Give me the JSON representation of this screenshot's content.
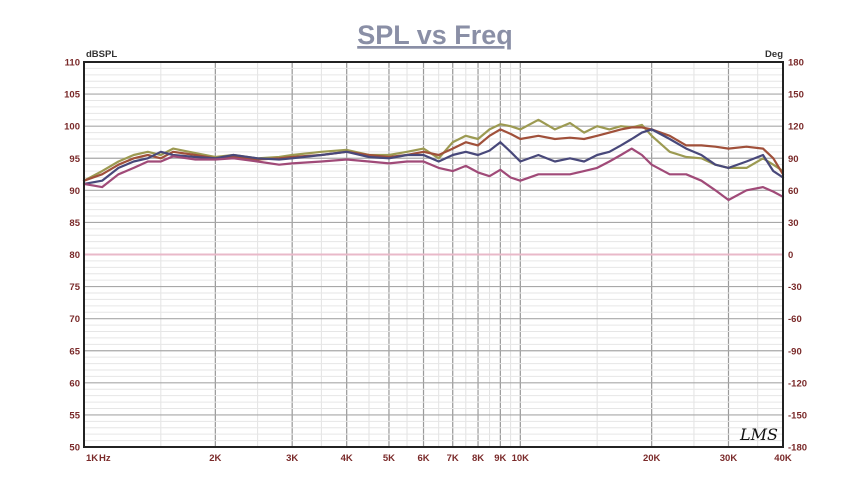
{
  "chart_data": {
    "type": "line",
    "title": "SPL vs Freq",
    "xscale": "log",
    "xlim": [
      1000,
      40000
    ],
    "ylim": [
      50,
      110
    ],
    "y2lim": [
      -180,
      180
    ],
    "ylabel": "dBSPL",
    "y2label": "Deg",
    "x_ticks": [
      {
        "value": 1000,
        "label": "1K"
      },
      {
        "value": 2000,
        "label": "2K"
      },
      {
        "value": 3000,
        "label": "3K"
      },
      {
        "value": 4000,
        "label": "4K"
      },
      {
        "value": 5000,
        "label": "5K"
      },
      {
        "value": 6000,
        "label": "6K"
      },
      {
        "value": 7000,
        "label": "7K"
      },
      {
        "value": 8000,
        "label": "8K"
      },
      {
        "value": 9000,
        "label": "9K"
      },
      {
        "value": 10000,
        "label": "10K"
      },
      {
        "value": 20000,
        "label": "20K"
      },
      {
        "value": 30000,
        "label": "30K"
      },
      {
        "value": 40000,
        "label": "40K"
      }
    ],
    "x_unit_label": "Hz",
    "y_ticks": [
      110,
      105,
      100,
      95,
      90,
      85,
      80,
      75,
      70,
      65,
      60,
      55,
      50
    ],
    "y2_ticks": [
      180,
      150,
      120,
      90,
      60,
      30,
      0,
      -30,
      -60,
      -90,
      -120,
      -150,
      -180
    ],
    "reference_line_y": 80,
    "grid": true,
    "logo_text": "LMS",
    "series": [
      {
        "color": "#9c9a52",
        "points": [
          [
            1000,
            91.5
          ],
          [
            1100,
            93
          ],
          [
            1200,
            94.5
          ],
          [
            1300,
            95.5
          ],
          [
            1400,
            96
          ],
          [
            1500,
            95.5
          ],
          [
            1600,
            96.5
          ],
          [
            1800,
            95.8
          ],
          [
            2000,
            95.2
          ],
          [
            2200,
            95.5
          ],
          [
            2500,
            95
          ],
          [
            2800,
            95.2
          ],
          [
            3000,
            95.5
          ],
          [
            3500,
            96
          ],
          [
            4000,
            96.3
          ],
          [
            4500,
            95.5
          ],
          [
            5000,
            95.5
          ],
          [
            5500,
            96
          ],
          [
            6000,
            96.5
          ],
          [
            6500,
            95
          ],
          [
            7000,
            97.5
          ],
          [
            7500,
            98.5
          ],
          [
            8000,
            98
          ],
          [
            8500,
            99.5
          ],
          [
            9000,
            100.3
          ],
          [
            9500,
            100
          ],
          [
            10000,
            99.5
          ],
          [
            11000,
            101
          ],
          [
            12000,
            99.5
          ],
          [
            13000,
            100.5
          ],
          [
            14000,
            99
          ],
          [
            15000,
            100
          ],
          [
            16000,
            99.5
          ],
          [
            17000,
            100
          ],
          [
            18000,
            99.8
          ],
          [
            19000,
            100.2
          ],
          [
            20000,
            98.5
          ],
          [
            22000,
            96
          ],
          [
            24000,
            95.2
          ],
          [
            26000,
            95
          ],
          [
            28000,
            94
          ],
          [
            30000,
            93.5
          ],
          [
            33000,
            93.5
          ],
          [
            36000,
            95
          ],
          [
            38000,
            94
          ],
          [
            40000,
            93
          ]
        ]
      },
      {
        "color": "#a0503a",
        "points": [
          [
            1000,
            91.5
          ],
          [
            1100,
            92.5
          ],
          [
            1200,
            94
          ],
          [
            1300,
            95
          ],
          [
            1400,
            95.5
          ],
          [
            1500,
            95
          ],
          [
            1600,
            96
          ],
          [
            1800,
            95.5
          ],
          [
            2000,
            95
          ],
          [
            2200,
            95.2
          ],
          [
            2500,
            94.8
          ],
          [
            2800,
            95
          ],
          [
            3000,
            95.2
          ],
          [
            3500,
            95.5
          ],
          [
            4000,
            96
          ],
          [
            4500,
            95.5
          ],
          [
            5000,
            95.2
          ],
          [
            5500,
            95.5
          ],
          [
            6000,
            96
          ],
          [
            6500,
            95.5
          ],
          [
            7000,
            96.5
          ],
          [
            7500,
            97.5
          ],
          [
            8000,
            97
          ],
          [
            8500,
            98.5
          ],
          [
            9000,
            99.5
          ],
          [
            9500,
            98.8
          ],
          [
            10000,
            98
          ],
          [
            11000,
            98.5
          ],
          [
            12000,
            98
          ],
          [
            13000,
            98.2
          ],
          [
            14000,
            98
          ],
          [
            15000,
            98.5
          ],
          [
            16000,
            99
          ],
          [
            17000,
            99.5
          ],
          [
            18000,
            99.8
          ],
          [
            19000,
            99.8
          ],
          [
            20000,
            99.5
          ],
          [
            22000,
            98.5
          ],
          [
            24000,
            97
          ],
          [
            26000,
            97
          ],
          [
            28000,
            96.8
          ],
          [
            30000,
            96.5
          ],
          [
            33000,
            96.8
          ],
          [
            36000,
            96.5
          ],
          [
            38000,
            95
          ],
          [
            40000,
            92.5
          ]
        ]
      },
      {
        "color": "#48487a",
        "points": [
          [
            1000,
            91
          ],
          [
            1100,
            91.5
          ],
          [
            1200,
            93.5
          ],
          [
            1300,
            94.5
          ],
          [
            1400,
            95
          ],
          [
            1500,
            96
          ],
          [
            1600,
            95.5
          ],
          [
            1800,
            95.2
          ],
          [
            2000,
            95
          ],
          [
            2200,
            95.5
          ],
          [
            2500,
            95
          ],
          [
            2800,
            94.8
          ],
          [
            3000,
            95
          ],
          [
            3500,
            95.5
          ],
          [
            4000,
            96
          ],
          [
            4500,
            95.2
          ],
          [
            5000,
            95
          ],
          [
            5500,
            95.5
          ],
          [
            6000,
            95.5
          ],
          [
            6500,
            94.5
          ],
          [
            7000,
            95.5
          ],
          [
            7500,
            96
          ],
          [
            8000,
            95.5
          ],
          [
            8500,
            96.2
          ],
          [
            9000,
            97.5
          ],
          [
            9500,
            96
          ],
          [
            10000,
            94.5
          ],
          [
            11000,
            95.5
          ],
          [
            12000,
            94.5
          ],
          [
            13000,
            95
          ],
          [
            14000,
            94.5
          ],
          [
            15000,
            95.5
          ],
          [
            16000,
            96
          ],
          [
            17000,
            97
          ],
          [
            18000,
            98
          ],
          [
            19000,
            99
          ],
          [
            20000,
            99.5
          ],
          [
            22000,
            98
          ],
          [
            24000,
            96.5
          ],
          [
            26000,
            95.5
          ],
          [
            28000,
            94
          ],
          [
            30000,
            93.5
          ],
          [
            33000,
            94.5
          ],
          [
            36000,
            95.5
          ],
          [
            38000,
            93
          ],
          [
            40000,
            92
          ]
        ]
      },
      {
        "color": "#a04a78",
        "points": [
          [
            1000,
            91
          ],
          [
            1100,
            90.5
          ],
          [
            1200,
            92.5
          ],
          [
            1300,
            93.5
          ],
          [
            1400,
            94.5
          ],
          [
            1500,
            94.5
          ],
          [
            1600,
            95.3
          ],
          [
            1800,
            94.8
          ],
          [
            2000,
            94.8
          ],
          [
            2200,
            95
          ],
          [
            2500,
            94.5
          ],
          [
            2800,
            94
          ],
          [
            3000,
            94.2
          ],
          [
            3500,
            94.5
          ],
          [
            4000,
            94.8
          ],
          [
            4500,
            94.5
          ],
          [
            5000,
            94.2
          ],
          [
            5500,
            94.5
          ],
          [
            6000,
            94.5
          ],
          [
            6500,
            93.5
          ],
          [
            7000,
            93
          ],
          [
            7500,
            93.8
          ],
          [
            8000,
            92.8
          ],
          [
            8500,
            92.2
          ],
          [
            9000,
            93.2
          ],
          [
            9500,
            92
          ],
          [
            10000,
            91.5
          ],
          [
            11000,
            92.5
          ],
          [
            12000,
            92.5
          ],
          [
            13000,
            92.5
          ],
          [
            14000,
            93
          ],
          [
            15000,
            93.5
          ],
          [
            16000,
            94.5
          ],
          [
            17000,
            95.5
          ],
          [
            18000,
            96.5
          ],
          [
            19000,
            95.5
          ],
          [
            20000,
            94
          ],
          [
            22000,
            92.5
          ],
          [
            24000,
            92.5
          ],
          [
            26000,
            91.5
          ],
          [
            28000,
            90
          ],
          [
            30000,
            88.5
          ],
          [
            33000,
            90
          ],
          [
            36000,
            90.5
          ],
          [
            38000,
            89.8
          ],
          [
            40000,
            89
          ]
        ]
      }
    ]
  }
}
